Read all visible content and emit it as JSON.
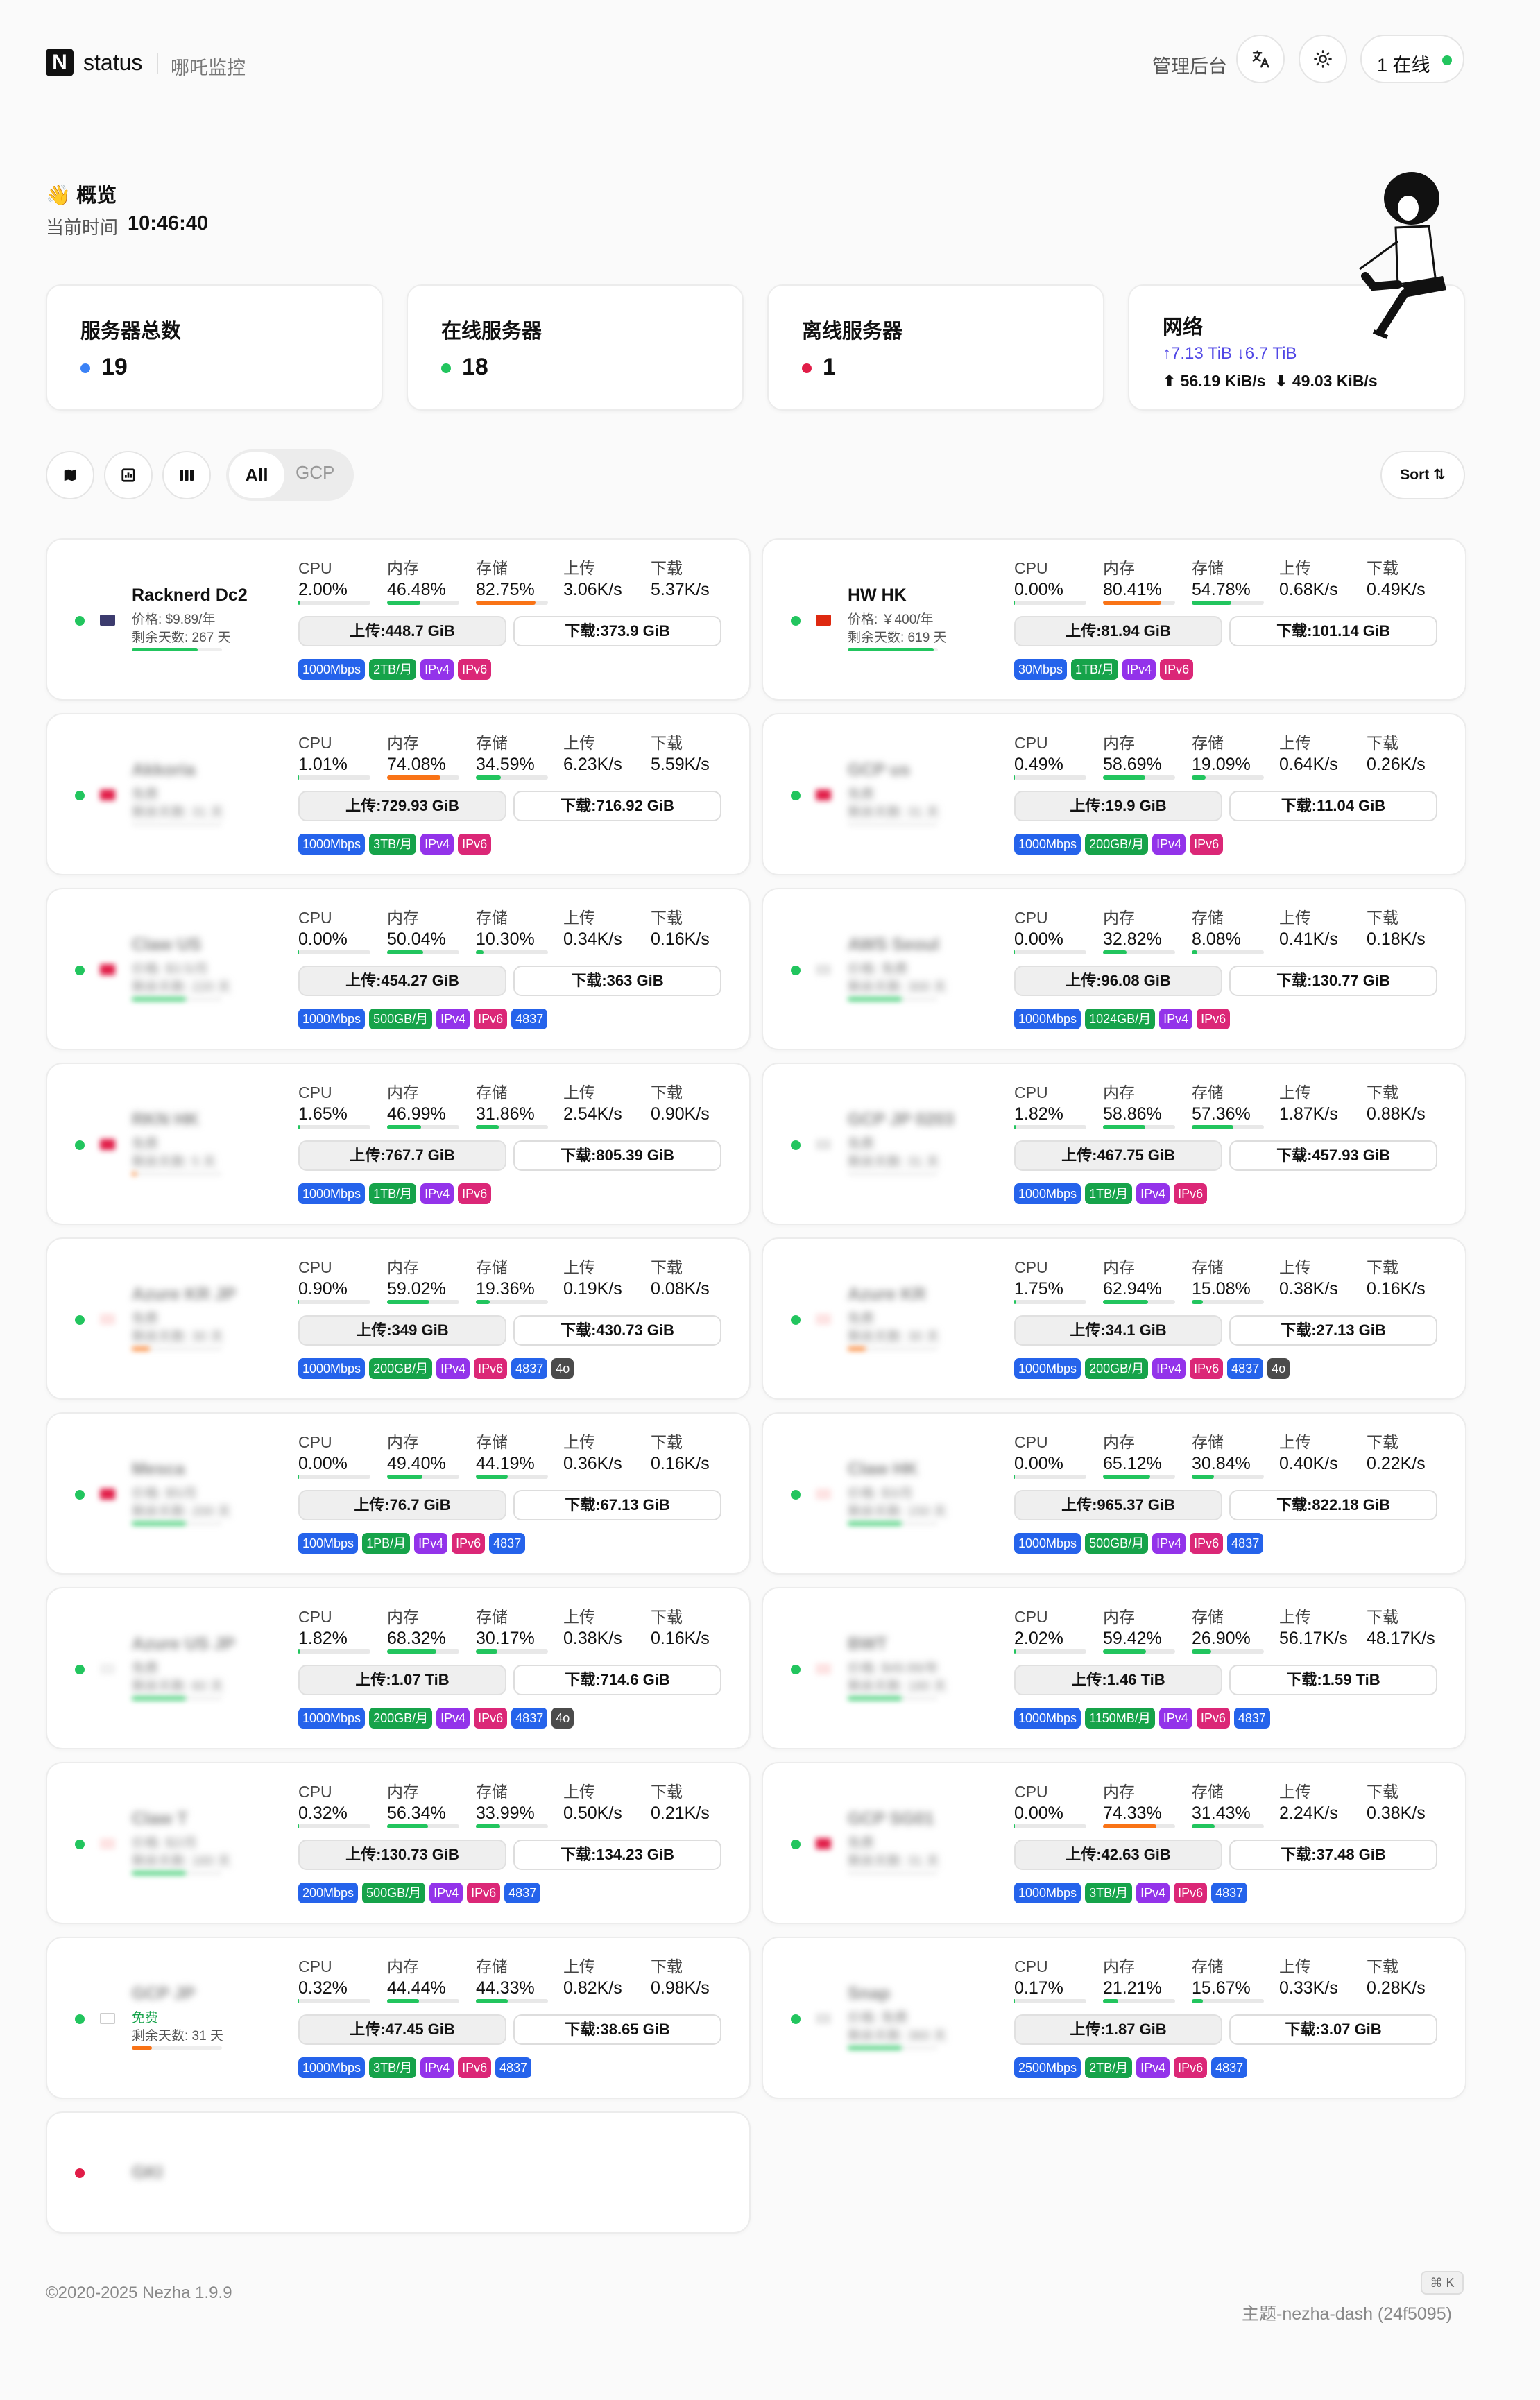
{
  "header": {
    "brand": "status",
    "brand_sub": "哪吒监控",
    "admin_label": "管理后台",
    "translate_icon": "translate-icon",
    "theme_icon": "sun-icon",
    "online_label": "1 在线"
  },
  "overview": {
    "title": "👋 概览",
    "time_label": "当前时间",
    "time_value": "10:46:40"
  },
  "stats": {
    "total_label": "服务器总数",
    "total_value": "19",
    "online_label": "在线服务器",
    "online_value": "18",
    "offline_label": "离线服务器",
    "offline_value": "1",
    "network_label": "网络",
    "network_totals": "↑7.13 TiB ↓6.7 TiB",
    "network_up_speed": "56.19 KiB/s",
    "network_down_speed": "49.03 KiB/s"
  },
  "filters": {
    "all_label": "All",
    "gcp_label": "GCP",
    "sort_label": "Sort ⇅",
    "icons": [
      "map-icon",
      "chart-icon",
      "columns-icon"
    ]
  },
  "colors": {
    "online": "#22c55e",
    "offline": "#e11d48",
    "total": "#3b82f6",
    "bar_green": "#22c55e",
    "bar_orange": "#f97316",
    "network_totals": "#4f46e5"
  },
  "labels": {
    "cpu": "CPU",
    "mem": "内存",
    "disk": "存储",
    "up": "上传",
    "down": "下载"
  },
  "servers": [
    {
      "name": "Racknerd Dc2",
      "price": "价格: $9.89/年",
      "days": "剩余天数: 267 天",
      "days_pct": 0.73,
      "blurred": false,
      "online": true,
      "flag": "#3c3b6e",
      "cpu": "2.00%",
      "cpu_pct": 2.0,
      "mem": "46.48%",
      "mem_pct": 46.48,
      "disk": "82.75%",
      "disk_pct": 82.75,
      "up": "3.06K/s",
      "down": "5.37K/s",
      "up_total": "上传:448.7 GiB",
      "down_total": "下载:373.9 GiB",
      "tags": [
        [
          "bw",
          "1000Mbps"
        ],
        [
          "tr",
          "2TB/月"
        ],
        [
          "v4",
          "IPv4"
        ],
        [
          "v6",
          "IPv6"
        ]
      ]
    },
    {
      "name": "HW HK",
      "price": "价格: ￥400/年",
      "days": "剩余天数: 619 天",
      "days_pct": 0.95,
      "blurred": false,
      "online": true,
      "flag": "#de2910",
      "cpu": "0.00%",
      "cpu_pct": 0.0,
      "mem": "80.41%",
      "mem_pct": 80.41,
      "disk": "54.78%",
      "disk_pct": 54.78,
      "up": "0.68K/s",
      "down": "0.49K/s",
      "up_total": "上传:81.94 GiB",
      "down_total": "下载:101.14 GiB",
      "tags": [
        [
          "bw",
          "30Mbps"
        ],
        [
          "tr",
          "1TB/月"
        ],
        [
          "v4",
          "IPv4"
        ],
        [
          "v6",
          "IPv6"
        ]
      ]
    },
    {
      "name": "Akkoria",
      "price": "免费",
      "days": "剩余天数: 31 天",
      "days_pct": 0.0,
      "blurred": true,
      "online": true,
      "flag": "#e11d48",
      "cpu": "1.01%",
      "cpu_pct": 1.01,
      "mem": "74.08%",
      "mem_pct": 74.08,
      "disk": "34.59%",
      "disk_pct": 34.59,
      "up": "6.23K/s",
      "down": "5.59K/s",
      "up_total": "上传:729.93 GiB",
      "down_total": "下载:716.92 GiB",
      "tags": [
        [
          "bw",
          "1000Mbps"
        ],
        [
          "tr",
          "3TB/月"
        ],
        [
          "v4",
          "IPv4"
        ],
        [
          "v6",
          "IPv6"
        ]
      ]
    },
    {
      "name": "GCP us",
      "price": "免费",
      "days": "剩余天数: 31 天",
      "days_pct": 0.0,
      "blurred": true,
      "online": true,
      "flag": "#e11d48",
      "cpu": "0.49%",
      "cpu_pct": 0.49,
      "mem": "58.69%",
      "mem_pct": 58.69,
      "disk": "19.09%",
      "disk_pct": 19.09,
      "up": "0.64K/s",
      "down": "0.26K/s",
      "up_total": "上传:19.9 GiB",
      "down_total": "下载:11.04 GiB",
      "tags": [
        [
          "bw",
          "1000Mbps"
        ],
        [
          "tr",
          "200GB/月"
        ],
        [
          "v4",
          "IPv4"
        ],
        [
          "v6",
          "IPv6"
        ]
      ]
    },
    {
      "name": "Claw US",
      "price": "价格: $3.5/月",
      "days": "剩余天数: 220 天",
      "days_pct": 0.6,
      "blurred": true,
      "online": true,
      "flag": "#e11d48",
      "cpu": "0.00%",
      "cpu_pct": 0.0,
      "mem": "50.04%",
      "mem_pct": 50.04,
      "disk": "10.30%",
      "disk_pct": 10.3,
      "up": "0.34K/s",
      "down": "0.16K/s",
      "up_total": "上传:454.27 GiB",
      "down_total": "下载:363 GiB",
      "tags": [
        [
          "bw",
          "1000Mbps"
        ],
        [
          "tr",
          "500GB/月"
        ],
        [
          "v4",
          "IPv4"
        ],
        [
          "v6",
          "IPv6"
        ],
        [
          "asn",
          "4837"
        ]
      ]
    },
    {
      "name": "AWS Seoul",
      "price": "价格: 免费",
      "days": "剩余天数: 300 天",
      "days_pct": 0.6,
      "blurred": true,
      "online": true,
      "flag": "#e5e5e5",
      "cpu": "0.00%",
      "cpu_pct": 0.0,
      "mem": "32.82%",
      "mem_pct": 32.82,
      "disk": "8.08%",
      "disk_pct": 8.08,
      "up": "0.41K/s",
      "down": "0.18K/s",
      "up_total": "上传:96.08 GiB",
      "down_total": "下载:130.77 GiB",
      "tags": [
        [
          "bw",
          "1000Mbps"
        ],
        [
          "tr",
          "1024GB/月"
        ],
        [
          "v4",
          "IPv4"
        ],
        [
          "v6",
          "IPv6"
        ]
      ]
    },
    {
      "name": "RKN HK",
      "price": "免费",
      "days": "剩余天数: 5 天",
      "days_pct": 0.05,
      "blurred": true,
      "online": true,
      "flag": "#e11d48",
      "cpu": "1.65%",
      "cpu_pct": 1.65,
      "mem": "46.99%",
      "mem_pct": 46.99,
      "disk": "31.86%",
      "disk_pct": 31.86,
      "up": "2.54K/s",
      "down": "0.90K/s",
      "up_total": "上传:767.7 GiB",
      "down_total": "下载:805.39 GiB",
      "tags": [
        [
          "bw",
          "1000Mbps"
        ],
        [
          "tr",
          "1TB/月"
        ],
        [
          "v4",
          "IPv4"
        ],
        [
          "v6",
          "IPv6"
        ]
      ]
    },
    {
      "name": "GCP JP 0203",
      "price": "免费",
      "days": "剩余天数: 31 天",
      "days_pct": 0.0,
      "blurred": true,
      "online": true,
      "flag": "#e5e5e5",
      "cpu": "1.82%",
      "cpu_pct": 1.82,
      "mem": "58.86%",
      "mem_pct": 58.86,
      "disk": "57.36%",
      "disk_pct": 57.36,
      "up": "1.87K/s",
      "down": "0.88K/s",
      "up_total": "上传:467.75 GiB",
      "down_total": "下载:457.93 GiB",
      "tags": [
        [
          "bw",
          "1000Mbps"
        ],
        [
          "tr",
          "1TB/月"
        ],
        [
          "v4",
          "IPv4"
        ],
        [
          "v6",
          "IPv6"
        ]
      ]
    },
    {
      "name": "Azure KR JP",
      "price": "免费",
      "days": "剩余天数: 30 天",
      "days_pct": 0.2,
      "blurred": true,
      "online": true,
      "flag": "#fde2e2",
      "cpu": "0.90%",
      "cpu_pct": 0.9,
      "mem": "59.02%",
      "mem_pct": 59.02,
      "disk": "19.36%",
      "disk_pct": 19.36,
      "up": "0.19K/s",
      "down": "0.08K/s",
      "up_total": "上传:349 GiB",
      "down_total": "下载:430.73 GiB",
      "tags": [
        [
          "bw",
          "1000Mbps"
        ],
        [
          "tr",
          "200GB/月"
        ],
        [
          "v4",
          "IPv4"
        ],
        [
          "v6",
          "IPv6"
        ],
        [
          "asn",
          "4837"
        ],
        [
          "extra",
          "4o"
        ]
      ]
    },
    {
      "name": "Azure KR",
      "price": "免费",
      "days": "剩余天数: 30 天",
      "days_pct": 0.2,
      "blurred": true,
      "online": true,
      "flag": "#fde2e2",
      "cpu": "1.75%",
      "cpu_pct": 1.75,
      "mem": "62.94%",
      "mem_pct": 62.94,
      "disk": "15.08%",
      "disk_pct": 15.08,
      "up": "0.38K/s",
      "down": "0.16K/s",
      "up_total": "上传:34.1 GiB",
      "down_total": "下载:27.13 GiB",
      "tags": [
        [
          "bw",
          "1000Mbps"
        ],
        [
          "tr",
          "200GB/月"
        ],
        [
          "v4",
          "IPv4"
        ],
        [
          "v6",
          "IPv6"
        ],
        [
          "asn",
          "4837"
        ],
        [
          "extra",
          "4o"
        ]
      ]
    },
    {
      "name": "Mesca",
      "price": "价格: $5/月",
      "days": "剩余天数: 200 天",
      "days_pct": 0.6,
      "blurred": true,
      "online": true,
      "flag": "#e11d48",
      "cpu": "0.00%",
      "cpu_pct": 0.0,
      "mem": "49.40%",
      "mem_pct": 49.4,
      "disk": "44.19%",
      "disk_pct": 44.19,
      "up": "0.36K/s",
      "down": "0.16K/s",
      "up_total": "上传:76.7 GiB",
      "down_total": "下载:67.13 GiB",
      "tags": [
        [
          "bw",
          "100Mbps"
        ],
        [
          "tr",
          "1PB/月"
        ],
        [
          "v4",
          "IPv4"
        ],
        [
          "v6",
          "IPv6"
        ],
        [
          "asn",
          "4837"
        ]
      ]
    },
    {
      "name": "Claw HK",
      "price": "价格: $3/月",
      "days": "剩余天数: 150 天",
      "days_pct": 0.6,
      "blurred": true,
      "online": true,
      "flag": "#fde2e2",
      "cpu": "0.00%",
      "cpu_pct": 0.0,
      "mem": "65.12%",
      "mem_pct": 65.12,
      "disk": "30.84%",
      "disk_pct": 30.84,
      "up": "0.40K/s",
      "down": "0.22K/s",
      "up_total": "上传:965.37 GiB",
      "down_total": "下载:822.18 GiB",
      "tags": [
        [
          "bw",
          "1000Mbps"
        ],
        [
          "tr",
          "500GB/月"
        ],
        [
          "v4",
          "IPv4"
        ],
        [
          "v6",
          "IPv6"
        ],
        [
          "asn",
          "4837"
        ]
      ]
    },
    {
      "name": "Azure US JP",
      "price": "免费",
      "days": "剩余天数: 60 天",
      "days_pct": 0.6,
      "blurred": true,
      "online": true,
      "flag": "#f0f0f0",
      "cpu": "1.82%",
      "cpu_pct": 1.82,
      "mem": "68.32%",
      "mem_pct": 68.32,
      "disk": "30.17%",
      "disk_pct": 30.17,
      "up": "0.38K/s",
      "down": "0.16K/s",
      "up_total": "上传:1.07 TiB",
      "down_total": "下载:714.6 GiB",
      "tags": [
        [
          "bw",
          "1000Mbps"
        ],
        [
          "tr",
          "200GB/月"
        ],
        [
          "v4",
          "IPv4"
        ],
        [
          "v6",
          "IPv6"
        ],
        [
          "asn",
          "4837"
        ],
        [
          "extra",
          "4o"
        ]
      ]
    },
    {
      "name": "BWT",
      "price": "价格: $49.99/年",
      "days": "剩余天数: 180 天",
      "days_pct": 0.6,
      "blurred": true,
      "online": true,
      "flag": "#fde2e2",
      "cpu": "2.02%",
      "cpu_pct": 2.02,
      "mem": "59.42%",
      "mem_pct": 59.42,
      "disk": "26.90%",
      "disk_pct": 26.9,
      "up": "56.17K/s",
      "down": "48.17K/s",
      "up_total": "上传:1.46 TiB",
      "down_total": "下载:1.59 TiB",
      "tags": [
        [
          "bw",
          "1000Mbps"
        ],
        [
          "tr",
          "1150MB/月"
        ],
        [
          "v4",
          "IPv4"
        ],
        [
          "v6",
          "IPv6"
        ],
        [
          "asn",
          "4837"
        ]
      ]
    },
    {
      "name": "Claw T",
      "price": "价格: $2/月",
      "days": "剩余天数: 160 天",
      "days_pct": 0.6,
      "blurred": true,
      "online": true,
      "flag": "#fde2e2",
      "cpu": "0.32%",
      "cpu_pct": 0.32,
      "mem": "56.34%",
      "mem_pct": 56.34,
      "disk": "33.99%",
      "disk_pct": 33.99,
      "up": "0.50K/s",
      "down": "0.21K/s",
      "up_total": "上传:130.73 GiB",
      "down_total": "下载:134.23 GiB",
      "tags": [
        [
          "bw",
          "200Mbps"
        ],
        [
          "tr",
          "500GB/月"
        ],
        [
          "v4",
          "IPv4"
        ],
        [
          "v6",
          "IPv6"
        ],
        [
          "asn",
          "4837"
        ]
      ]
    },
    {
      "name": "GCP SG01",
      "price": "免费",
      "days": "剩余天数: 31 天",
      "days_pct": 0.0,
      "blurred": true,
      "online": true,
      "flag": "#e11d48",
      "cpu": "0.00%",
      "cpu_pct": 0.0,
      "mem": "74.33%",
      "mem_pct": 74.33,
      "disk": "31.43%",
      "disk_pct": 31.43,
      "up": "2.24K/s",
      "down": "0.38K/s",
      "up_total": "上传:42.63 GiB",
      "down_total": "下载:37.48 GiB",
      "tags": [
        [
          "bw",
          "1000Mbps"
        ],
        [
          "tr",
          "3TB/月"
        ],
        [
          "v4",
          "IPv4"
        ],
        [
          "v6",
          "IPv6"
        ],
        [
          "asn",
          "4837"
        ]
      ]
    },
    {
      "name": "GCP JP",
      "price": "免费",
      "days": "剩余天数: 31 天",
      "days_pct": 0.22,
      "blurred": false,
      "name_blurred": true,
      "online": true,
      "flag": "#ffffff",
      "price_color": "#16a34a",
      "cpu": "0.32%",
      "cpu_pct": 0.32,
      "mem": "44.44%",
      "mem_pct": 44.44,
      "disk": "44.33%",
      "disk_pct": 44.33,
      "up": "0.82K/s",
      "down": "0.98K/s",
      "up_total": "上传:47.45 GiB",
      "down_total": "下载:38.65 GiB",
      "tags": [
        [
          "bw",
          "1000Mbps"
        ],
        [
          "tr",
          "3TB/月"
        ],
        [
          "v4",
          "IPv4"
        ],
        [
          "v6",
          "IPv6"
        ],
        [
          "asn",
          "4837"
        ]
      ]
    },
    {
      "name": "Snap",
      "price": "价格: 免费",
      "days": "剩余天数: 360 天",
      "days_pct": 0.6,
      "blurred": true,
      "online": true,
      "flag": "#e5e5e5",
      "cpu": "0.17%",
      "cpu_pct": 0.17,
      "mem": "21.21%",
      "mem_pct": 21.21,
      "disk": "15.67%",
      "disk_pct": 15.67,
      "up": "0.33K/s",
      "down": "0.28K/s",
      "up_total": "上传:1.87 GiB",
      "down_total": "下载:3.07 GiB",
      "tags": [
        [
          "bw",
          "2500Mbps"
        ],
        [
          "tr",
          "2TB/月"
        ],
        [
          "v4",
          "IPv4"
        ],
        [
          "v6",
          "IPv6"
        ],
        [
          "asn",
          "4837"
        ]
      ]
    }
  ],
  "offline_server": {
    "name": "GKI"
  },
  "footer": {
    "copyright": "©2020-2025 Nezha 1.9.9",
    "shortcut": "⌘ K",
    "theme": "主题-nezha-dash (24f5095)"
  }
}
